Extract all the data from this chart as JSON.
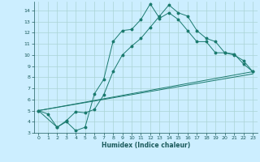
{
  "bg_color": "#cceeff",
  "line_color": "#1a7a6e",
  "grid_color": "#aad4d4",
  "xlabel": "Humidex (Indice chaleur)",
  "xlim": [
    -0.5,
    23.5
  ],
  "ylim": [
    3,
    14.8
  ],
  "xticks": [
    0,
    1,
    2,
    3,
    4,
    5,
    6,
    7,
    8,
    9,
    10,
    11,
    12,
    13,
    14,
    15,
    16,
    17,
    18,
    19,
    20,
    21,
    22,
    23
  ],
  "yticks": [
    3,
    4,
    5,
    6,
    7,
    8,
    9,
    10,
    11,
    12,
    13,
    14
  ],
  "line1_x": [
    0,
    1,
    2,
    3,
    4,
    5,
    6,
    7,
    8,
    9,
    10,
    11,
    12,
    13,
    14,
    15,
    16,
    17,
    18,
    19,
    20,
    21,
    22,
    23
  ],
  "line1_y": [
    5,
    4.7,
    3.5,
    4.0,
    3.2,
    3.5,
    6.5,
    7.8,
    11.2,
    12.2,
    12.3,
    13.2,
    14.6,
    13.3,
    13.8,
    13.2,
    12.2,
    11.2,
    11.2,
    10.2,
    10.2,
    10.0,
    9.5,
    8.5
  ],
  "line2_x": [
    0,
    2,
    3,
    4,
    5,
    6,
    7,
    8,
    9,
    10,
    11,
    12,
    13,
    14,
    15,
    16,
    17,
    18,
    19,
    20,
    21,
    22,
    23
  ],
  "line2_y": [
    5,
    3.5,
    4.1,
    4.9,
    4.8,
    5.1,
    6.4,
    8.5,
    10.0,
    10.8,
    11.5,
    12.5,
    13.5,
    14.5,
    13.8,
    13.5,
    12.2,
    11.5,
    11.2,
    10.2,
    10.1,
    9.2,
    8.5
  ],
  "line3_x": [
    0,
    23
  ],
  "line3_y": [
    5,
    8.3
  ],
  "line4_x": [
    0,
    23
  ],
  "line4_y": [
    5,
    8.5
  ]
}
